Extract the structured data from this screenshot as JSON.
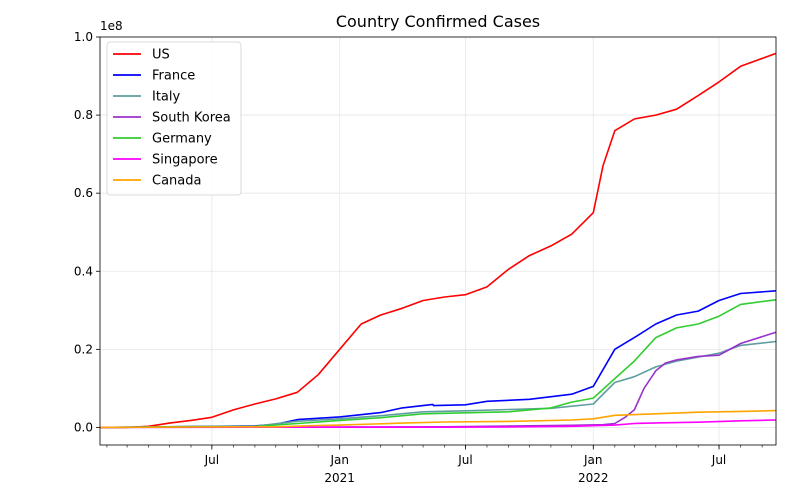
{
  "chart_data": {
    "type": "line",
    "title": "Country Confirmed Cases",
    "xlabel": "",
    "ylabel": "",
    "y_scale_label": "1e8",
    "y_tick_values": [
      0,
      20000000.0,
      40000000.0,
      60000000.0,
      80000000.0,
      100000000.0
    ],
    "y_tick_labels": [
      "0.0",
      "0.2",
      "0.4",
      "0.6",
      "0.8",
      "1.0"
    ],
    "ylim": [
      -4500000,
      100000000
    ],
    "xlim": [
      "2020-01-22",
      "2022-09-21"
    ],
    "x_major_ticks": [
      {
        "date": "2020-07-01",
        "label": "Jul",
        "sub": ""
      },
      {
        "date": "2021-01-01",
        "label": "Jan",
        "sub": "2021"
      },
      {
        "date": "2021-07-01",
        "label": "Jul",
        "sub": ""
      },
      {
        "date": "2022-01-01",
        "label": "Jan",
        "sub": "2022"
      },
      {
        "date": "2022-07-01",
        "label": "Jul",
        "sub": ""
      }
    ],
    "grid": true,
    "legend_position": "top-left",
    "series": [
      {
        "name": "US",
        "color": "#ff0000",
        "points": [
          [
            "2020-01-22",
            0
          ],
          [
            "2020-03-01",
            0
          ],
          [
            "2020-04-01",
            300000
          ],
          [
            "2020-05-01",
            1100000
          ],
          [
            "2020-06-01",
            1800000
          ],
          [
            "2020-07-01",
            2600000
          ],
          [
            "2020-08-01",
            4500000
          ],
          [
            "2020-09-01",
            6000000
          ],
          [
            "2020-10-01",
            7300000
          ],
          [
            "2020-11-01",
            9000000
          ],
          [
            "2020-12-01",
            13500000
          ],
          [
            "2021-01-01",
            20000000
          ],
          [
            "2021-02-01",
            26500000
          ],
          [
            "2021-03-01",
            28800000
          ],
          [
            "2021-04-01",
            30500000
          ],
          [
            "2021-05-01",
            32500000
          ],
          [
            "2021-06-01",
            33400000
          ],
          [
            "2021-07-01",
            34000000
          ],
          [
            "2021-08-01",
            36000000
          ],
          [
            "2021-09-01",
            40500000
          ],
          [
            "2021-10-01",
            44000000
          ],
          [
            "2021-11-01",
            46500000
          ],
          [
            "2021-12-01",
            49500000
          ],
          [
            "2022-01-01",
            55000000
          ],
          [
            "2022-01-15",
            67000000
          ],
          [
            "2022-02-01",
            76000000
          ],
          [
            "2022-03-01",
            79000000
          ],
          [
            "2022-04-01",
            80000000
          ],
          [
            "2022-05-01",
            81500000
          ],
          [
            "2022-06-01",
            85000000
          ],
          [
            "2022-07-01",
            88500000
          ],
          [
            "2022-08-01",
            92500000
          ],
          [
            "2022-09-21",
            95800000
          ]
        ]
      },
      {
        "name": "France",
        "color": "#0000ff",
        "points": [
          [
            "2020-01-22",
            0
          ],
          [
            "2020-06-01",
            200000
          ],
          [
            "2020-09-01",
            400000
          ],
          [
            "2020-10-01",
            800000
          ],
          [
            "2020-11-01",
            2000000
          ],
          [
            "2021-01-01",
            2700000
          ],
          [
            "2021-03-01",
            3800000
          ],
          [
            "2021-04-01",
            5000000
          ],
          [
            "2021-05-15",
            5900000
          ],
          [
            "2021-05-16",
            5600000
          ],
          [
            "2021-07-01",
            5800000
          ],
          [
            "2021-08-01",
            6700000
          ],
          [
            "2021-10-01",
            7200000
          ],
          [
            "2021-12-01",
            8500000
          ],
          [
            "2022-01-01",
            10500000
          ],
          [
            "2022-02-01",
            20000000
          ],
          [
            "2022-03-01",
            23000000
          ],
          [
            "2022-04-01",
            26500000
          ],
          [
            "2022-05-01",
            28800000
          ],
          [
            "2022-06-01",
            29800000
          ],
          [
            "2022-07-01",
            32500000
          ],
          [
            "2022-08-01",
            34300000
          ],
          [
            "2022-09-21",
            35000000
          ]
        ]
      },
      {
        "name": "Italy",
        "color": "#5f9ea0",
        "points": [
          [
            "2020-01-22",
            0
          ],
          [
            "2020-04-01",
            100000
          ],
          [
            "2020-06-01",
            240000
          ],
          [
            "2020-09-01",
            290000
          ],
          [
            "2020-11-01",
            1600000
          ],
          [
            "2021-01-01",
            2200000
          ],
          [
            "2021-03-01",
            3000000
          ],
          [
            "2021-05-01",
            4000000
          ],
          [
            "2021-07-01",
            4250000
          ],
          [
            "2021-09-01",
            4600000
          ],
          [
            "2021-11-01",
            4900000
          ],
          [
            "2022-01-01",
            6000000
          ],
          [
            "2022-02-01",
            11500000
          ],
          [
            "2022-03-01",
            13000000
          ],
          [
            "2022-04-01",
            15500000
          ],
          [
            "2022-05-01",
            17000000
          ],
          [
            "2022-07-01",
            19000000
          ],
          [
            "2022-08-01",
            21000000
          ],
          [
            "2022-09-21",
            22000000
          ]
        ]
      },
      {
        "name": "South Korea",
        "color": "#9932cc",
        "points": [
          [
            "2020-01-22",
            0
          ],
          [
            "2021-06-01",
            150000
          ],
          [
            "2021-12-01",
            550000
          ],
          [
            "2022-01-15",
            700000
          ],
          [
            "2022-02-01",
            1000000
          ],
          [
            "2022-02-15",
            2500000
          ],
          [
            "2022-03-01",
            4500000
          ],
          [
            "2022-03-15",
            10000000
          ],
          [
            "2022-04-01",
            14500000
          ],
          [
            "2022-04-15",
            16500000
          ],
          [
            "2022-05-01",
            17300000
          ],
          [
            "2022-06-01",
            18200000
          ],
          [
            "2022-07-01",
            18500000
          ],
          [
            "2022-08-01",
            21500000
          ],
          [
            "2022-09-21",
            24400000
          ]
        ]
      },
      {
        "name": "Germany",
        "color": "#32cd32",
        "points": [
          [
            "2020-01-22",
            0
          ],
          [
            "2020-04-01",
            100000
          ],
          [
            "2020-06-01",
            190000
          ],
          [
            "2020-09-01",
            250000
          ],
          [
            "2020-11-01",
            1000000
          ],
          [
            "2021-01-01",
            1800000
          ],
          [
            "2021-03-01",
            2500000
          ],
          [
            "2021-05-01",
            3500000
          ],
          [
            "2021-07-01",
            3750000
          ],
          [
            "2021-09-01",
            4000000
          ],
          [
            "2021-11-01",
            5000000
          ],
          [
            "2021-12-01",
            6500000
          ],
          [
            "2022-01-01",
            7500000
          ],
          [
            "2022-02-01",
            12500000
          ],
          [
            "2022-03-01",
            17000000
          ],
          [
            "2022-04-01",
            23000000
          ],
          [
            "2022-05-01",
            25500000
          ],
          [
            "2022-06-01",
            26500000
          ],
          [
            "2022-07-01",
            28500000
          ],
          [
            "2022-08-01",
            31500000
          ],
          [
            "2022-09-21",
            32700000
          ]
        ]
      },
      {
        "name": "Singapore",
        "color": "#ff00ff",
        "points": [
          [
            "2020-01-22",
            0
          ],
          [
            "2020-06-01",
            40000
          ],
          [
            "2021-01-01",
            60000
          ],
          [
            "2021-06-01",
            65000
          ],
          [
            "2021-09-01",
            100000
          ],
          [
            "2021-12-01",
            280000
          ],
          [
            "2022-02-01",
            600000
          ],
          [
            "2022-03-01",
            1000000
          ],
          [
            "2022-04-01",
            1150000
          ],
          [
            "2022-06-01",
            1350000
          ],
          [
            "2022-08-01",
            1700000
          ],
          [
            "2022-09-21",
            1900000
          ]
        ]
      },
      {
        "name": "Canada",
        "color": "#ffa500",
        "points": [
          [
            "2020-01-22",
            0
          ],
          [
            "2020-06-01",
            100000
          ],
          [
            "2020-10-01",
            170000
          ],
          [
            "2020-12-01",
            500000
          ],
          [
            "2021-01-01",
            600000
          ],
          [
            "2021-04-01",
            1100000
          ],
          [
            "2021-06-01",
            1400000
          ],
          [
            "2021-09-01",
            1550000
          ],
          [
            "2021-12-01",
            1900000
          ],
          [
            "2022-01-01",
            2200000
          ],
          [
            "2022-02-01",
            3100000
          ],
          [
            "2022-04-01",
            3500000
          ],
          [
            "2022-06-01",
            3900000
          ],
          [
            "2022-08-01",
            4100000
          ],
          [
            "2022-09-21",
            4300000
          ]
        ]
      }
    ]
  }
}
